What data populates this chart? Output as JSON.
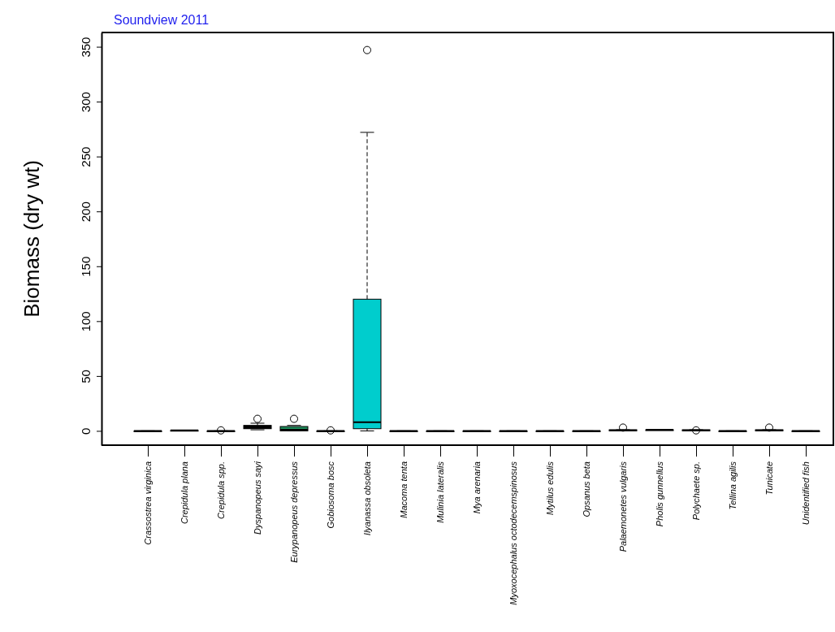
{
  "chart_data": {
    "type": "box",
    "title": "Soundview  2011",
    "ylabel": "Biomass (dry wt)",
    "categories": [
      "Crassostrea virginica",
      "Crepidula plana",
      "Crepidula spp.",
      "Dyspanopeus sayi",
      "Eurypanopeus depressus",
      "Gobiosoma bosc",
      "Ilyanassa obsoleta",
      "Macoma tenta",
      "Mulinia lateralis",
      "Mya arenaria",
      "Myoxocephalus octodecemspinosus",
      "Mytilus edulis",
      "Opsanus beta",
      "Palaemonetes vulgaris",
      "Pholis gunnellus",
      "Polychaete sp.",
      "Tellina agilis",
      "Tunicate",
      "Unidentified fish"
    ],
    "series": [
      {
        "boxes": [
          {
            "low": 0,
            "q1": 0,
            "median": 0,
            "q3": 0,
            "high": 0
          },
          {
            "low": 0.5,
            "q1": 0.5,
            "median": 0.5,
            "q3": 0.5,
            "high": 0.5
          },
          {
            "low": 0,
            "q1": 0,
            "median": 0,
            "q3": 0,
            "high": 0,
            "outliers": [
              0.5
            ]
          },
          {
            "low": 1,
            "q1": 2,
            "median": 3,
            "q3": 5,
            "high": 7,
            "outliers": [
              11
            ]
          },
          {
            "low": 0,
            "q1": 0,
            "median": 1,
            "q3": 4,
            "high": 5,
            "outliers": [
              11
            ]
          },
          {
            "low": 0,
            "q1": 0,
            "median": 0,
            "q3": 0,
            "high": 0,
            "outliers": [
              0.5
            ]
          },
          {
            "low": 0,
            "q1": 2,
            "median": 8,
            "q3": 120,
            "high": 272,
            "outliers": [
              347
            ]
          },
          {
            "low": 0,
            "q1": 0,
            "median": 0,
            "q3": 0,
            "high": 0
          },
          {
            "low": 0,
            "q1": 0,
            "median": 0,
            "q3": 0,
            "high": 0
          },
          {
            "low": 0,
            "q1": 0,
            "median": 0,
            "q3": 0,
            "high": 0
          },
          {
            "low": 0,
            "q1": 0,
            "median": 0,
            "q3": 0,
            "high": 0
          },
          {
            "low": 0,
            "q1": 0,
            "median": 0,
            "q3": 0,
            "high": 0
          },
          {
            "low": 0,
            "q1": 0,
            "median": 0,
            "q3": 0,
            "high": 0
          },
          {
            "low": 0,
            "q1": 0,
            "median": 0.5,
            "q3": 1,
            "high": 1,
            "outliers": [
              3
            ]
          },
          {
            "low": 1,
            "q1": 1,
            "median": 1,
            "q3": 1,
            "high": 1
          },
          {
            "low": 0,
            "q1": 0,
            "median": 0.5,
            "q3": 1,
            "high": 1,
            "outliers": [
              0.5
            ]
          },
          {
            "low": 0,
            "q1": 0,
            "median": 0,
            "q3": 0,
            "high": 0
          },
          {
            "low": 0,
            "q1": 0,
            "median": 0.5,
            "q3": 1,
            "high": 1,
            "outliers": [
              3
            ]
          },
          {
            "low": 0,
            "q1": 0,
            "median": 0,
            "q3": 0,
            "high": 0
          }
        ]
      }
    ],
    "colors": [
      "#000000",
      "#000000",
      "#000000",
      "#000000",
      "#1e8a5a",
      "#000000",
      "#00cdcd",
      "#000000",
      "#000000",
      "#000000",
      "#000000",
      "#000000",
      "#000000",
      "#000000",
      "#000000",
      "#000000",
      "#000000",
      "#000000",
      "#000000"
    ],
    "ylim": [
      -13,
      363
    ],
    "yticks": [
      0,
      50,
      100,
      150,
      200,
      250,
      300,
      350
    ],
    "line_style": "dashed",
    "grid": false
  }
}
